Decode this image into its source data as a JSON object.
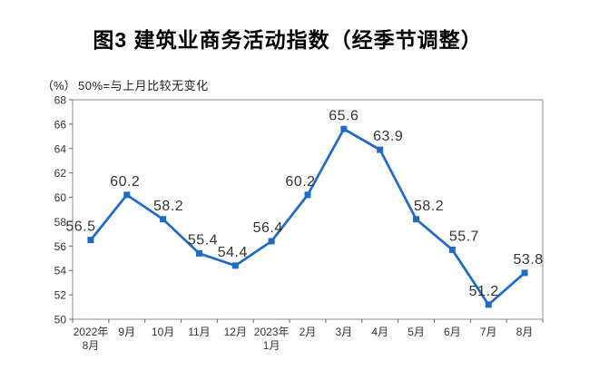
{
  "chart_data": {
    "type": "line",
    "title": "图3  建筑业商务活动指数（经季节调整）",
    "ylabel": "（%）",
    "annotation": "50%=与上月比较无变化",
    "categories": [
      "2022年\n8月",
      "9月",
      "10月",
      "11月",
      "12月",
      "2023年\n1月",
      "2月",
      "3月",
      "4月",
      "5月",
      "6月",
      "7月",
      "8月"
    ],
    "values": [
      56.5,
      60.2,
      58.2,
      55.4,
      54.4,
      56.4,
      60.2,
      65.6,
      63.9,
      58.2,
      55.7,
      51.2,
      53.8
    ],
    "ylim": [
      50,
      68
    ],
    "ytick_step": 2,
    "ytick_labels": [
      "50",
      "52",
      "54",
      "56",
      "58",
      "60",
      "62",
      "64",
      "66",
      "68"
    ],
    "grid": false,
    "legend": false,
    "data_labels_shown": true,
    "marker": "square",
    "line_color": "#1e6bc8",
    "label_color": "#333333",
    "axis_color": "#8c8c8c"
  }
}
